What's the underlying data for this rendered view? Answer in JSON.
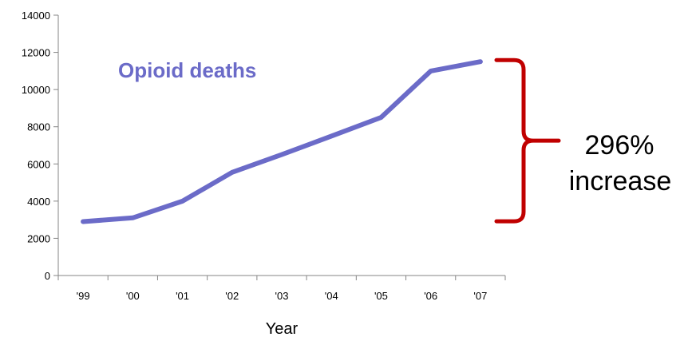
{
  "chart_data": {
    "type": "line",
    "categories": [
      "'99",
      "'00",
      "'01",
      "'02",
      "'03",
      "'04",
      "'05",
      "'06",
      "'07"
    ],
    "series": [
      {
        "name": "Opioid deaths",
        "values": [
          2900,
          3100,
          4000,
          5550,
          6500,
          7500,
          8500,
          11000,
          11500
        ],
        "color": "#6b6bc8"
      }
    ],
    "xlabel": "Year",
    "ylabel": "",
    "ylim": [
      0,
      14000
    ],
    "yticks": [
      0,
      2000,
      4000,
      6000,
      8000,
      10000,
      12000,
      14000
    ],
    "grid": false,
    "annotation": {
      "line1": "296%",
      "line2": "increase",
      "brace_color": "#c00000",
      "brace_from_value": 3000,
      "brace_to_value": 11500
    }
  }
}
